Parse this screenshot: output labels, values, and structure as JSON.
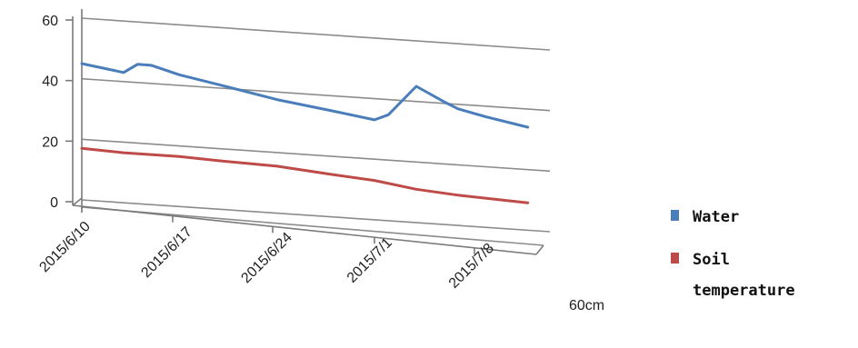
{
  "chart_data": {
    "type": "line",
    "title": "",
    "xlabel": "",
    "ylabel": "",
    "ylim": [
      0,
      60
    ],
    "yticks": [
      "0",
      "20",
      "40",
      "60"
    ],
    "xticks": [
      "2015/6/10",
      "2015/6/17",
      "2015/6/24",
      "2015/7/1",
      "2015/7/8"
    ],
    "grid": true,
    "legend_position": "right",
    "note": "60cm",
    "series": [
      {
        "name": "Water",
        "color": "#4a7ebb",
        "points": [
          [
            "2015/6/10",
            45
          ],
          [
            "2015/6/13",
            43
          ],
          [
            "2015/6/14",
            46
          ],
          [
            "2015/6/15",
            46
          ],
          [
            "2015/6/17",
            43.5
          ],
          [
            "2015/6/20",
            41
          ],
          [
            "2015/6/24",
            37.5
          ],
          [
            "2015/6/28",
            35
          ],
          [
            "2015/7/1",
            33
          ],
          [
            "2015/7/2",
            35
          ],
          [
            "2015/7/4",
            45
          ],
          [
            "2015/7/6",
            40.5
          ],
          [
            "2015/7/7",
            38.5
          ],
          [
            "2015/7/9",
            36.5
          ],
          [
            "2015/7/12",
            34
          ]
        ]
      },
      {
        "name": "Soil temperature",
        "color": "#be4b48",
        "points": [
          [
            "2015/6/10",
            17
          ],
          [
            "2015/6/13",
            16.5
          ],
          [
            "2015/6/17",
            16.5
          ],
          [
            "2015/6/20",
            16
          ],
          [
            "2015/6/24",
            15.5
          ],
          [
            "2015/6/28",
            14
          ],
          [
            "2015/7/1",
            13
          ],
          [
            "2015/7/4",
            11
          ],
          [
            "2015/7/7",
            10
          ],
          [
            "2015/7/12",
            9
          ]
        ]
      }
    ]
  },
  "legend": {
    "items": [
      {
        "label_lines": [
          "Water"
        ],
        "color": "#4a7ebb"
      },
      {
        "label_lines": [
          "Soil",
          "temperature"
        ],
        "color": "#be4b48"
      }
    ]
  }
}
